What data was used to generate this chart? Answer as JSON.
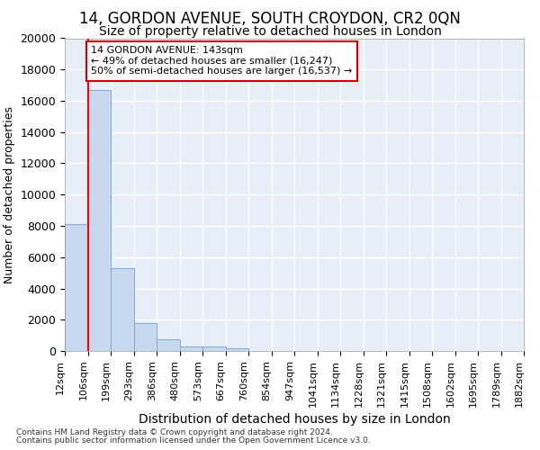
{
  "title": "14, GORDON AVENUE, SOUTH CROYDON, CR2 0QN",
  "subtitle": "Size of property relative to detached houses in London",
  "xlabel": "Distribution of detached houses by size in London",
  "ylabel": "Number of detached properties",
  "bar_color": "#c8d8ee",
  "bar_edge_color": "#7aaad4",
  "bar_values": [
    8100,
    16700,
    5300,
    1800,
    750,
    300,
    300,
    200,
    0,
    0,
    0,
    0,
    0,
    0,
    0,
    0,
    0,
    0,
    0,
    0
  ],
  "bar_labels": [
    "12sqm",
    "106sqm",
    "199sqm",
    "293sqm",
    "386sqm",
    "480sqm",
    "573sqm",
    "667sqm",
    "760sqm",
    "854sqm",
    "947sqm",
    "1041sqm",
    "1134sqm",
    "1228sqm",
    "1321sqm",
    "1415sqm",
    "1508sqm",
    "1602sqm",
    "1695sqm",
    "1789sqm",
    "1882sqm"
  ],
  "ylim": [
    0,
    20000
  ],
  "yticks": [
    0,
    2000,
    4000,
    6000,
    8000,
    10000,
    12000,
    14000,
    16000,
    18000,
    20000
  ],
  "red_line_x": 1,
  "annotation_text": "14 GORDON AVENUE: 143sqm\n← 49% of detached houses are smaller (16,247)\n50% of semi-detached houses are larger (16,537) →",
  "annotation_box_color": "#ffffff",
  "annotation_box_edge_color": "#cc0000",
  "footer_line1": "Contains HM Land Registry data © Crown copyright and database right 2024.",
  "footer_line2": "Contains public sector information licensed under the Open Government Licence v3.0.",
  "background_color": "#e8eef8",
  "grid_color": "#ffffff",
  "title_fontsize": 12,
  "subtitle_fontsize": 10,
  "ylabel_fontsize": 9,
  "xlabel_fontsize": 10,
  "ytick_fontsize": 9,
  "xtick_fontsize": 8
}
